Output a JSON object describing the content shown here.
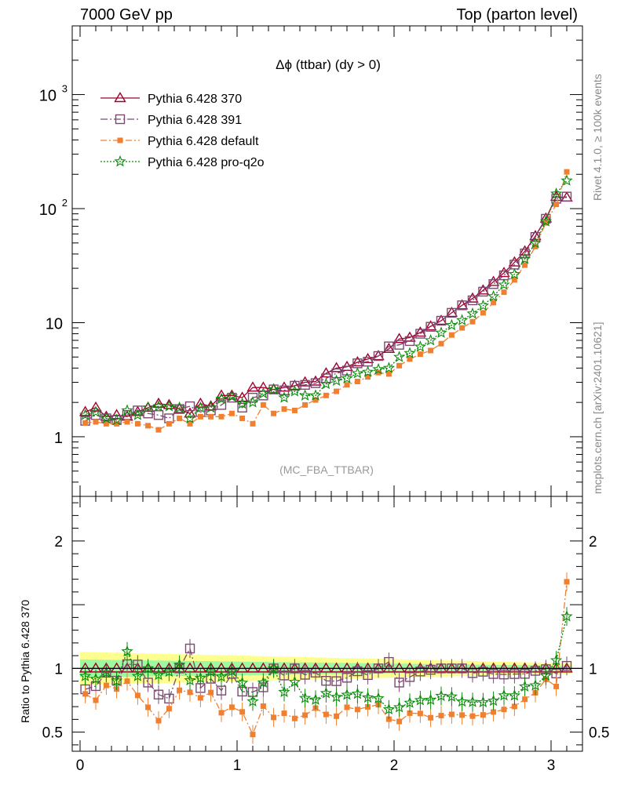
{
  "header": {
    "left": "7000 GeV pp",
    "right": "Top (parton level)"
  },
  "side": {
    "rivet": "Rivet 4.1.0, ≥ 100k events",
    "mcplots": "mcplots.cern.ch [arXiv:2401.10621]"
  },
  "chart_data": {
    "type": "line",
    "title": "Δϕ (ttbar) (dy > 0)",
    "watermark": "(MC_FBA_TTBAR)",
    "xlabel": "",
    "xlim": [
      -0.05,
      3.2
    ],
    "x_ticks": [
      "0",
      "1",
      "2",
      "3"
    ],
    "main": {
      "yscale": "log",
      "ylim": [
        0.3,
        4000
      ],
      "y_ticks": [
        "1",
        "10",
        "10^2",
        "10^3"
      ]
    },
    "ratio": {
      "ylabel": "Ratio to Pythia 6.428 370",
      "ylim": [
        0.35,
        2.35
      ],
      "y_ticks": [
        "0.5",
        "1",
        "2"
      ],
      "reference": "Pythia 6.428 370"
    },
    "x": [
      0.033,
      0.1,
      0.167,
      0.233,
      0.3,
      0.367,
      0.433,
      0.5,
      0.567,
      0.633,
      0.7,
      0.767,
      0.833,
      0.9,
      0.967,
      1.033,
      1.1,
      1.167,
      1.233,
      1.3,
      1.367,
      1.433,
      1.5,
      1.567,
      1.633,
      1.7,
      1.767,
      1.833,
      1.9,
      1.967,
      2.033,
      2.1,
      2.167,
      2.233,
      2.3,
      2.367,
      2.433,
      2.5,
      2.567,
      2.633,
      2.7,
      2.767,
      2.833,
      2.9,
      2.967,
      3.033,
      3.1
    ],
    "series": [
      {
        "name": "Pythia 6.428 370",
        "color": "#a00030",
        "marker": "triangle",
        "dash": "",
        "values": [
          1.65,
          1.8,
          1.5,
          1.55,
          1.5,
          1.65,
          1.8,
          1.95,
          1.9,
          1.75,
          1.6,
          1.95,
          1.85,
          2.3,
          2.3,
          2.2,
          2.7,
          2.7,
          2.6,
          2.7,
          2.8,
          3.0,
          3.05,
          3.6,
          4.0,
          4.1,
          4.5,
          4.8,
          5.1,
          5.9,
          7.2,
          7.4,
          8.2,
          9.3,
          10.4,
          12.2,
          14.2,
          16.3,
          19.2,
          22.8,
          27.3,
          33.8,
          42.2,
          57.5,
          82.0,
          127.0,
          125.0
        ]
      },
      {
        "name": "Pythia 6.428 391",
        "color": "#7a4a70",
        "marker": "square",
        "dash": "9,3,2,3",
        "values": [
          1.38,
          1.55,
          1.45,
          1.4,
          1.55,
          1.7,
          1.6,
          1.55,
          1.45,
          1.75,
          1.85,
          1.65,
          1.7,
          1.9,
          2.2,
          1.8,
          2.2,
          2.3,
          2.6,
          2.55,
          2.8,
          2.85,
          2.95,
          3.25,
          3.6,
          3.8,
          4.4,
          4.55,
          5.1,
          6.2,
          6.4,
          6.9,
          8.0,
          9.2,
          10.4,
          12.2,
          14.2,
          15.7,
          18.7,
          21.8,
          26.0,
          32.3,
          40.4,
          56.4,
          81.5,
          122.0,
          127.5
        ]
      },
      {
        "name": "Pythia 6.428 default",
        "color": "#f08030",
        "marker": "square-filled",
        "dash": "8,3,2,3",
        "values": [
          1.32,
          1.35,
          1.3,
          1.3,
          1.35,
          1.3,
          1.25,
          1.15,
          1.3,
          1.45,
          1.3,
          1.5,
          1.5,
          1.5,
          1.6,
          1.45,
          1.3,
          1.9,
          1.6,
          1.75,
          1.7,
          1.9,
          2.1,
          2.3,
          2.5,
          2.85,
          3.05,
          3.35,
          3.65,
          3.55,
          4.2,
          4.8,
          5.3,
          5.7,
          6.55,
          7.8,
          9.0,
          10.2,
          12.2,
          15.0,
          18.5,
          23.7,
          32.0,
          46.5,
          75.0,
          109.0,
          210.0
        ]
      },
      {
        "name": "Pythia 6.428 pro-q2o",
        "color": "#0a8a0a",
        "marker": "star",
        "dash": "2,2",
        "values": [
          1.55,
          1.65,
          1.45,
          1.4,
          1.7,
          1.55,
          1.8,
          1.85,
          1.85,
          1.8,
          1.45,
          1.8,
          1.8,
          2.15,
          2.25,
          1.95,
          2.0,
          2.4,
          2.6,
          2.2,
          2.5,
          2.3,
          2.3,
          2.9,
          3.1,
          3.25,
          3.6,
          3.7,
          3.9,
          4.0,
          5.0,
          5.4,
          6.15,
          7.0,
          8.15,
          9.5,
          10.5,
          12.0,
          14.1,
          17.0,
          21.5,
          26.6,
          36.2,
          49.8,
          77.3,
          135.0,
          176.0
        ]
      }
    ],
    "ratio_band": {
      "inner_color": "#a0f8a0",
      "outer_color": "#ffff90",
      "inner_halfwidth_start": 0.07,
      "inner_halfwidth_end": 0.02,
      "outer_halfwidth_start": 0.13,
      "outer_halfwidth_end": 0.04
    }
  }
}
